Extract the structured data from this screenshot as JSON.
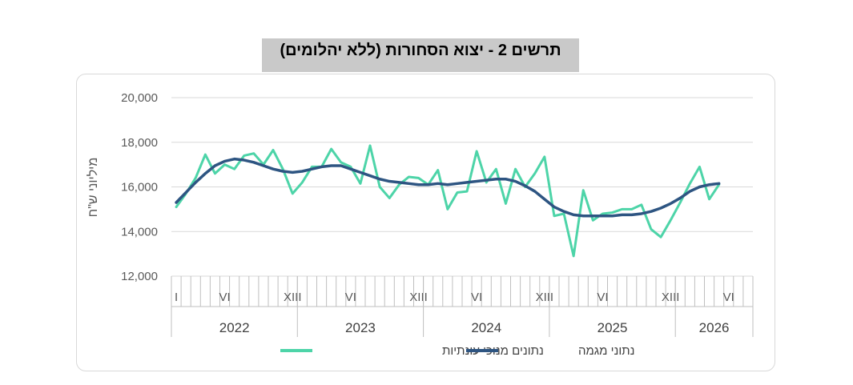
{
  "title": "תרשים 2 - יצוא הסחורות (ללא יהלומים)",
  "colors": {
    "seasonally_adjusted": "#4dd4a8",
    "trend": "#2e5582",
    "axis": "#bfbfbf",
    "grid": "#d9d9d9"
  },
  "chart_data": {
    "type": "line",
    "title": "תרשים 2 - יצוא הסחורות (ללא יהלומים)",
    "ylabel": "מיליוני ש\"ח",
    "ylim": [
      12000,
      20000
    ],
    "yticks": [
      "12,000",
      "14,000",
      "16,000",
      "18,000",
      "20,000"
    ],
    "ytick_values": [
      12000,
      14000,
      16000,
      18000,
      20000
    ],
    "x_tick_labels": [
      {
        "label": "I",
        "index": 0
      },
      {
        "label": "VI",
        "index": 5
      },
      {
        "label": "XIII",
        "index": 12
      },
      {
        "label": "VI",
        "index": 18
      },
      {
        "label": "XIII",
        "index": 25
      },
      {
        "label": "VI",
        "index": 31
      },
      {
        "label": "XIII",
        "index": 38
      },
      {
        "label": "VI",
        "index": 44
      },
      {
        "label": "XIII",
        "index": 51
      },
      {
        "label": "VI",
        "index": 57
      }
    ],
    "years": [
      {
        "label": "2022",
        "start": 0,
        "end": 12
      },
      {
        "label": "2023",
        "start": 13,
        "end": 25
      },
      {
        "label": "2024",
        "start": 26,
        "end": 38
      },
      {
        "label": "2025",
        "start": 39,
        "end": 51
      },
      {
        "label": "2026",
        "start": 52,
        "end": 59
      }
    ],
    "num_periods": 60,
    "grid": true,
    "legend_position": "bottom",
    "series": [
      {
        "name": "נתונים מנוכי עונתיות",
        "color": "#4dd4a8",
        "values": [
          15100,
          15700,
          16400,
          17450,
          16600,
          17000,
          16800,
          17400,
          17500,
          17000,
          17650,
          16800,
          15700,
          16200,
          16900,
          16900,
          17700,
          17100,
          16900,
          16150,
          17850,
          16000,
          15500,
          16100,
          16450,
          16400,
          16100,
          16750,
          15000,
          15750,
          15800,
          17600,
          16200,
          16800,
          15250,
          16800,
          16000,
          16600,
          17350,
          14700,
          14800,
          12900,
          15850,
          14500,
          14800,
          14850,
          15000,
          15000,
          15200,
          14100,
          13750,
          14500,
          15300,
          16150,
          16900,
          15450,
          16100
        ],
        "markers_from": null
      },
      {
        "name": "נתוני מגמה",
        "color": "#2e5582",
        "values": [
          15300,
          15750,
          16200,
          16600,
          16950,
          17150,
          17250,
          17200,
          17100,
          16950,
          16800,
          16700,
          16650,
          16700,
          16800,
          16900,
          16950,
          16950,
          16800,
          16650,
          16500,
          16350,
          16250,
          16200,
          16150,
          16100,
          16100,
          16150,
          16100,
          16150,
          16200,
          16250,
          16300,
          16350,
          16350,
          16250,
          16050,
          15800,
          15450,
          15100,
          14900,
          14750,
          14700,
          14700,
          14700,
          14700,
          14750,
          14750,
          14800,
          14900,
          15050,
          15250,
          15500,
          15800,
          16000,
          16100,
          16150
        ],
        "projected_from_index": 57
      }
    ]
  }
}
